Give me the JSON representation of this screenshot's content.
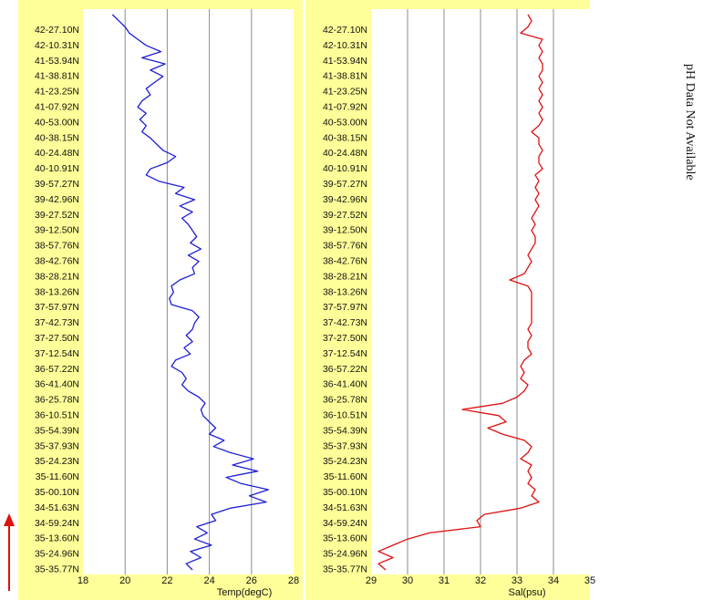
{
  "side_note": "pH Data Not Available",
  "colors": {
    "panel_bg": "#ffff99",
    "plot_bg": "#ffffff",
    "grid": "#8c8c8c",
    "temp_line": "#1f1fd6",
    "sal_line": "#e01010",
    "arrow": "#e01010"
  },
  "latitudes": [
    "42-27.10N",
    "42-10.31N",
    "41-53.94N",
    "41-38.81N",
    "41-23.25N",
    "41-07.92N",
    "40-53.00N",
    "40-38.15N",
    "40-24.48N",
    "40-10.91N",
    "39-57.27N",
    "39-42.96N",
    "39-27.52N",
    "39-12.50N",
    "38-57.76N",
    "38-42.76N",
    "38-28.21N",
    "38-13.26N",
    "37-57.97N",
    "37-42.73N",
    "37-27.50N",
    "37-12.54N",
    "36-57.22N",
    "36-41.40N",
    "36-25.78N",
    "36-10.51N",
    "35-54.39N",
    "35-37.93N",
    "35-24.23N",
    "35-11.60N",
    "35-00.10N",
    "34-51.63N",
    "34-59.24N",
    "35-13.60N",
    "35-24.96N",
    "35-35.77N"
  ],
  "chart_data": [
    {
      "type": "line",
      "orientation": "vertical-profile",
      "xlabel": "Temp(degC)",
      "xlim": [
        18,
        28
      ],
      "xticks": [
        "18",
        "20",
        "22",
        "24",
        "26",
        "28"
      ],
      "grid": true,
      "series": [
        {
          "values": [
            19.4,
            19.7,
            20.0,
            20.2,
            20.6,
            21.0,
            21.7,
            20.8,
            21.9,
            21.2,
            21.8,
            21.4,
            21.0,
            21.2,
            20.8,
            20.6,
            21.0,
            20.7,
            21.0,
            20.8,
            21.2,
            21.5,
            21.8,
            22.4,
            22.0,
            21.2,
            21.0,
            21.6,
            22.8,
            22.4,
            23.3,
            22.6,
            23.2,
            22.7,
            23.0,
            23.2,
            23.4,
            23.1,
            23.6,
            23.0,
            23.5,
            23.2,
            23.3,
            22.6,
            22.2,
            22.3,
            22.1,
            22.2,
            23.2,
            23.5,
            23.3,
            23.2,
            22.9,
            23.2,
            22.8,
            23.1,
            22.4,
            22.2,
            22.7,
            22.9,
            22.7,
            23.0,
            23.5,
            23.8,
            23.6,
            23.7,
            24.0,
            24.3,
            24.0,
            24.7,
            24.2,
            25.0,
            26.1,
            25.1,
            26.3,
            24.8,
            25.5,
            26.8,
            25.9,
            26.7,
            25.0,
            24.1,
            24.3,
            23.4,
            23.9,
            23.3,
            24.1,
            23.1,
            23.6,
            22.9,
            23.2
          ]
        }
      ]
    },
    {
      "type": "line",
      "orientation": "vertical-profile",
      "xlabel": "Sal(psu)",
      "xlim": [
        29,
        35
      ],
      "xticks": [
        "29",
        "30",
        "31",
        "32",
        "33",
        "34",
        "35"
      ],
      "grid": true,
      "series": [
        {
          "values": [
            33.3,
            33.4,
            33.3,
            33.1,
            33.7,
            33.6,
            33.7,
            33.6,
            33.7,
            33.7,
            33.6,
            33.7,
            33.6,
            33.7,
            33.6,
            33.7,
            33.6,
            33.7,
            33.6,
            33.4,
            33.6,
            33.6,
            33.7,
            33.6,
            33.6,
            33.7,
            33.5,
            33.6,
            33.5,
            33.6,
            33.5,
            33.6,
            33.5,
            33.4,
            33.5,
            33.4,
            33.5,
            33.5,
            33.4,
            33.3,
            33.4,
            33.3,
            33.2,
            32.8,
            33.3,
            33.4,
            33.4,
            33.4,
            33.4,
            33.4,
            33.4,
            33.3,
            33.4,
            33.3,
            33.3,
            33.4,
            33.2,
            33.1,
            33.2,
            33.1,
            33.3,
            33.2,
            33.0,
            32.6,
            31.5,
            32.5,
            32.7,
            32.2,
            32.6,
            33.2,
            33.4,
            33.3,
            33.1,
            33.4,
            33.3,
            33.4,
            33.3,
            33.5,
            33.4,
            33.6,
            33.1,
            32.1,
            31.9,
            32.0,
            30.6,
            30.0,
            29.6,
            29.2,
            29.6,
            29.2,
            29.4
          ]
        }
      ]
    }
  ]
}
